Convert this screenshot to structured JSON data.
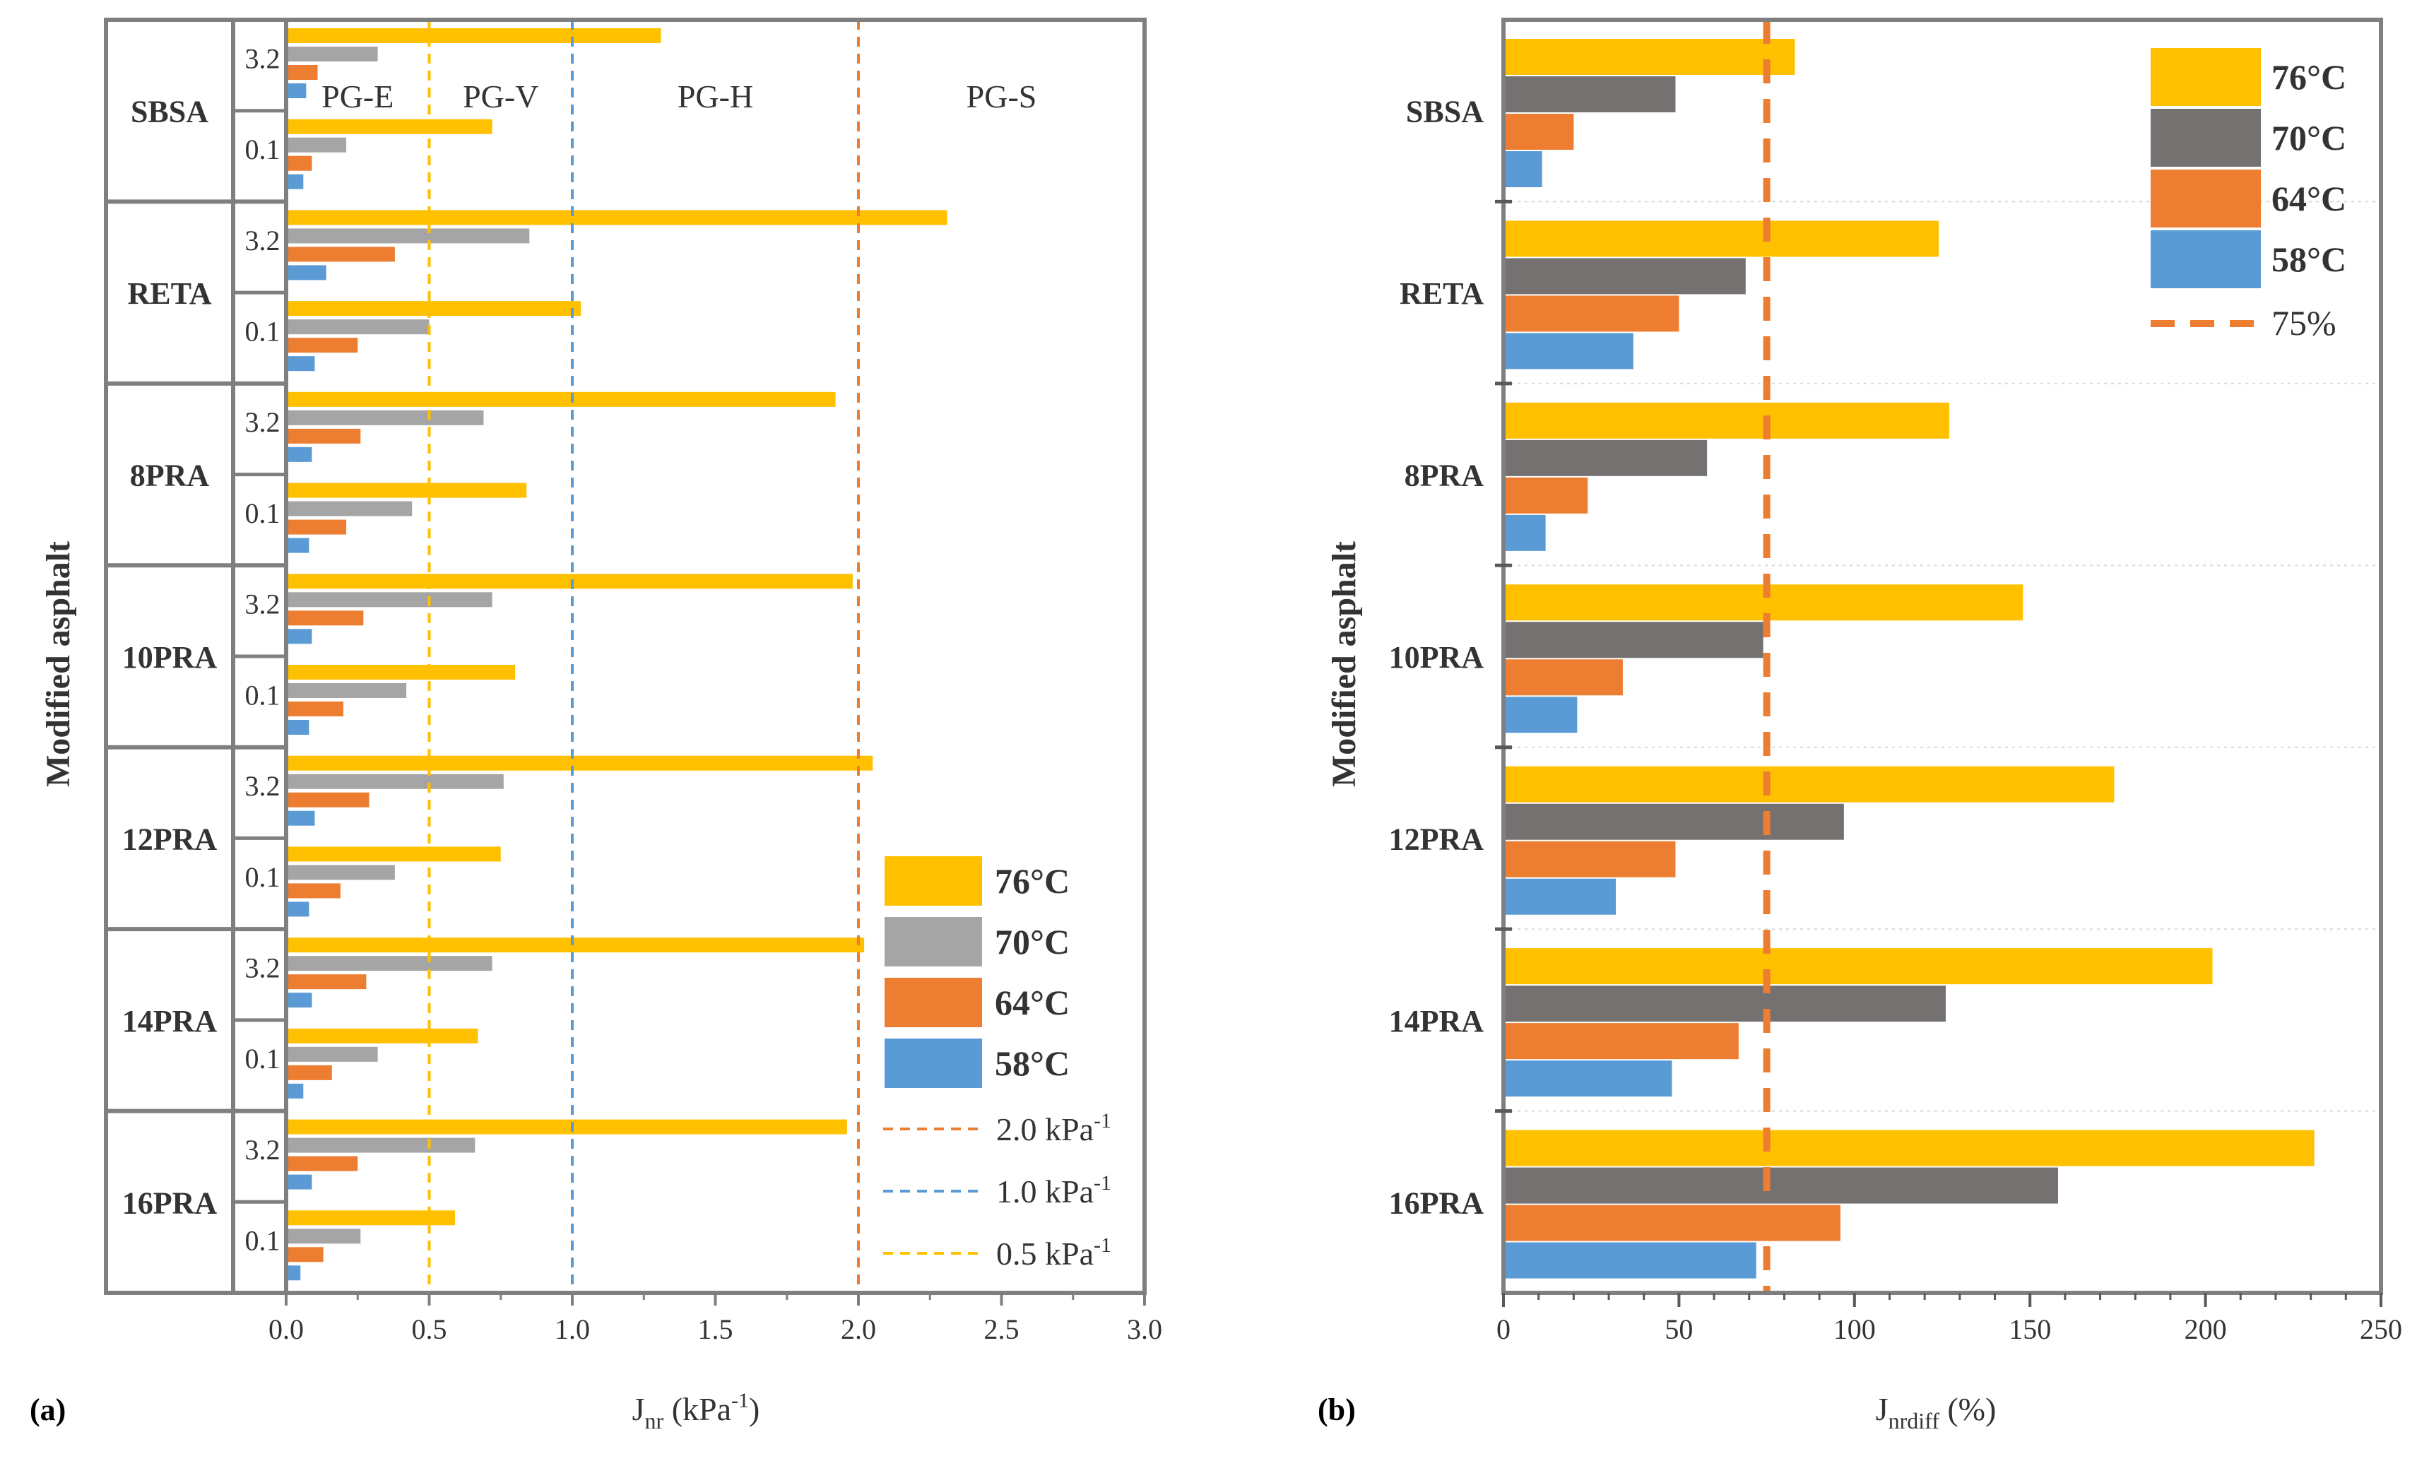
{
  "chart_data": [
    {
      "panel_label": "(a)",
      "type": "bar",
      "orientation": "horizontal",
      "ylabel": "Modified asphalt",
      "xlabel_main": "J",
      "xlabel_sub": "nr",
      "xlabel_unit_open": " (kPa",
      "xlabel_unit_sup": "-1",
      "xlabel_unit_close": ")",
      "xlim": [
        0,
        3.0
      ],
      "xticks": [
        "0.0",
        "0.5",
        "1.0",
        "1.5",
        "2.0",
        "2.5",
        "3.0"
      ],
      "groups": [
        "SBSA",
        "RETA",
        "8PRA",
        "10PRA",
        "12PRA",
        "14PRA",
        "16PRA"
      ],
      "stress_levels": [
        "3.2",
        "0.1"
      ],
      "series_names": [
        "76°C",
        "70°C",
        "64°C",
        "58°C"
      ],
      "colors": [
        "#FFC000",
        "#A5A5A5",
        "#ED7D31",
        "#5B9BD5"
      ],
      "values": {
        "SBSA": {
          "3.2": [
            1.31,
            0.32,
            0.11,
            0.07
          ],
          "0.1": [
            0.72,
            0.21,
            0.09,
            0.06
          ]
        },
        "RETA": {
          "3.2": [
            2.31,
            0.85,
            0.38,
            0.14
          ],
          "0.1": [
            1.03,
            0.5,
            0.25,
            0.1
          ]
        },
        "8PRA": {
          "3.2": [
            1.92,
            0.69,
            0.26,
            0.09
          ],
          "0.1": [
            0.84,
            0.44,
            0.21,
            0.08
          ]
        },
        "10PRA": {
          "3.2": [
            1.98,
            0.72,
            0.27,
            0.09
          ],
          "0.1": [
            0.8,
            0.42,
            0.2,
            0.08
          ]
        },
        "12PRA": {
          "3.2": [
            2.05,
            0.76,
            0.29,
            0.1
          ],
          "0.1": [
            0.75,
            0.38,
            0.19,
            0.08
          ]
        },
        "14PRA": {
          "3.2": [
            2.02,
            0.72,
            0.28,
            0.09
          ],
          "0.1": [
            0.67,
            0.32,
            0.16,
            0.06
          ]
        },
        "16PRA": {
          "3.2": [
            1.96,
            0.66,
            0.25,
            0.09
          ],
          "0.1": [
            0.59,
            0.26,
            0.13,
            0.05
          ]
        }
      },
      "reference_lines": [
        {
          "x": 2.0,
          "label_text": "2.0 kPa",
          "label_sup": "-1",
          "color": "#ED7D31"
        },
        {
          "x": 1.0,
          "label_text": "1.0 kPa",
          "label_sup": "-1",
          "color": "#5B9BD5"
        },
        {
          "x": 0.5,
          "label_text": "0.5 kPa",
          "label_sup": "-1",
          "color": "#FFC000"
        }
      ],
      "zone_labels": [
        "PG-E",
        "PG-V",
        "PG-H",
        "PG-S"
      ],
      "legend_position": "bottom-right",
      "grid": false
    },
    {
      "panel_label": "(b)",
      "type": "bar",
      "orientation": "horizontal",
      "ylabel": "Modified asphalt",
      "xlabel_main": "J",
      "xlabel_sub": "nrdiff",
      "xlabel_unit_open": " (%)",
      "xlim": [
        0,
        250
      ],
      "xticks": [
        "0",
        "50",
        "100",
        "150",
        "200",
        "250"
      ],
      "categories": [
        "SBSA",
        "RETA",
        "8PRA",
        "10PRA",
        "12PRA",
        "14PRA",
        "16PRA"
      ],
      "series": [
        {
          "name": "76°C",
          "color": "#FFC000",
          "values": [
            83,
            124,
            127,
            148,
            174,
            202,
            231
          ]
        },
        {
          "name": "70°C",
          "color": "#767171",
          "values": [
            49,
            69,
            58,
            74,
            97,
            126,
            158
          ]
        },
        {
          "name": "64°C",
          "color": "#ED7D31",
          "values": [
            20,
            50,
            24,
            34,
            49,
            67,
            96
          ]
        },
        {
          "name": "58°C",
          "color": "#5B9BD5",
          "values": [
            11,
            37,
            12,
            21,
            32,
            48,
            72
          ]
        }
      ],
      "reference_line": {
        "x": 75,
        "label": "75%",
        "color": "#ED7D31"
      },
      "legend_position": "top-right",
      "grid": true
    }
  ]
}
